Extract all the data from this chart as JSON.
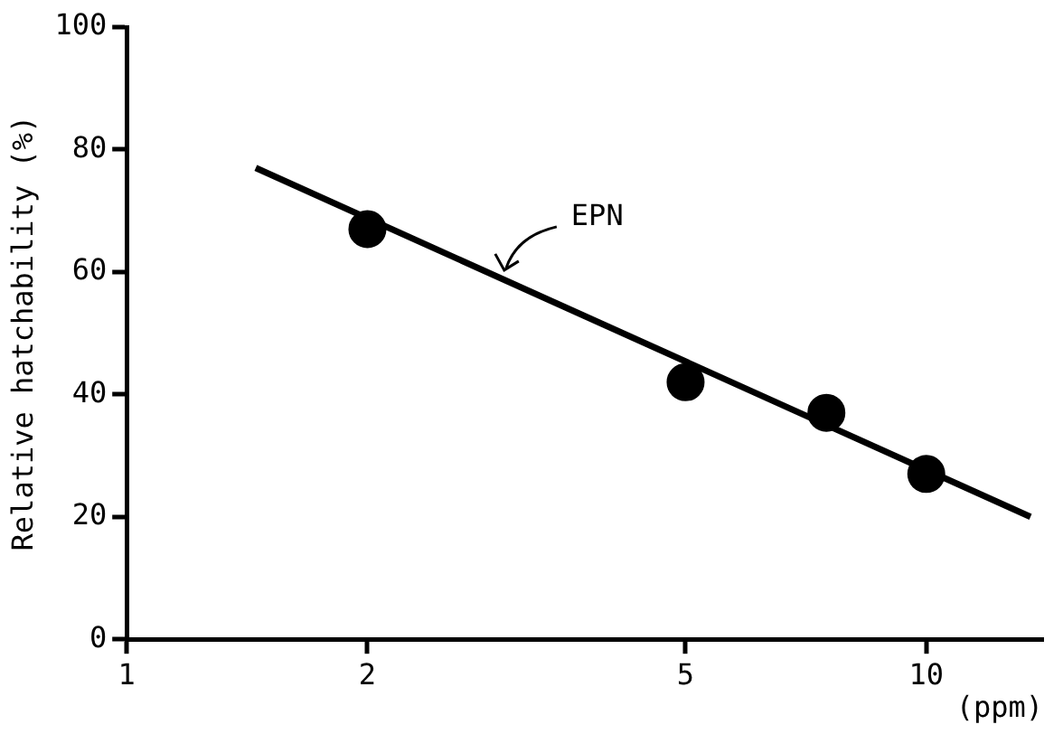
{
  "chart_data": {
    "type": "scatter",
    "ylabel": "Relative hatchability (%)",
    "xlabel": "(ppm)",
    "log": "x",
    "xlim": [
      1,
      14
    ],
    "xticks": [
      1,
      2,
      5,
      10
    ],
    "ylim": [
      0,
      100
    ],
    "yticks": [
      0,
      20,
      40,
      60,
      80,
      100
    ],
    "grid": false,
    "legend": false,
    "marker": "circle",
    "series": [
      {
        "color": "#000000",
        "x": [
          2,
          5,
          7.5,
          10
        ],
        "values": [
          67,
          42,
          37,
          27
        ]
      },
      {
        "type": "line",
        "color": "#000000",
        "marker": "none",
        "x": [
          1.45,
          13.5
        ],
        "values": [
          77,
          20
        ]
      }
    ],
    "annotations": [
      "EPN"
    ]
  }
}
